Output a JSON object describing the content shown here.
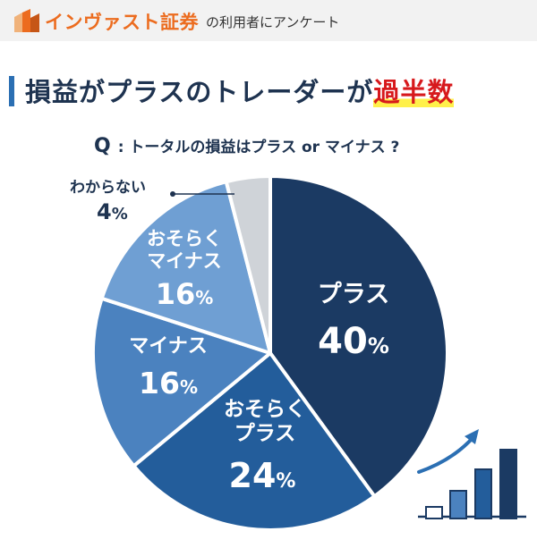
{
  "header": {
    "brand": "インヴァスト証券",
    "subtitle": "の利用者にアンケート",
    "colors": {
      "brand": "#ec6c1f",
      "header_bg": "#f2f2f2"
    }
  },
  "headline": {
    "text": "損益がプラスのトレーダーが",
    "highlight": "過半数",
    "colors": {
      "text": "#1e3350",
      "highlight": "#d7191c",
      "underline": "#fff04a"
    }
  },
  "question": {
    "marker": "Q",
    "text": ": トータルの損益はプラス or マイナス ?"
  },
  "chart_data": {
    "type": "pie",
    "title": "",
    "slices": [
      {
        "label": "プラス",
        "value": 40,
        "display": "40",
        "unit": "%",
        "color": "#1b3a63"
      },
      {
        "label": "おそらくプラス",
        "label_lines": [
          "おそらく",
          "プラス"
        ],
        "value": 24,
        "display": "24",
        "unit": "%",
        "color": "#235d9b"
      },
      {
        "label": "マイナス",
        "value": 16,
        "display": "16",
        "unit": "%",
        "color": "#4b82bf"
      },
      {
        "label": "おそらくマイナス",
        "label_lines": [
          "おそらく",
          "マイナス"
        ],
        "value": 16,
        "display": "16",
        "unit": "%",
        "color": "#6f9fd3"
      },
      {
        "label": "わからない",
        "value": 4,
        "display": "4",
        "unit": "%",
        "color": "#cfd3d8"
      }
    ],
    "start": "12 o'clock",
    "direction": "clockwise",
    "legend": "none"
  },
  "decoration": {
    "bar_icon_colors": [
      "#ffffff",
      "#4b82bf",
      "#235d9b",
      "#1b3a63"
    ],
    "arrow_color": "#2b6fb3",
    "icon": "growth-bars-icon"
  }
}
